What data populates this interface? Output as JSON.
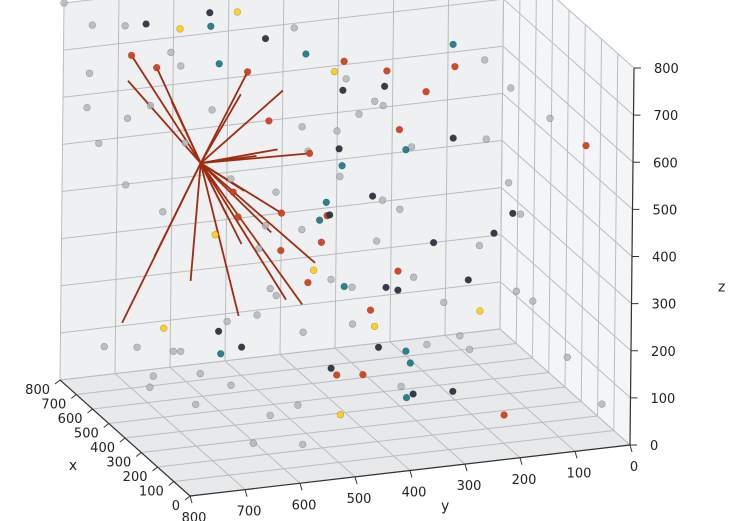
{
  "chart_data": {
    "type": "scatter",
    "projection": "3d",
    "grid": true,
    "title": "",
    "xlabel": "x",
    "ylabel": "y",
    "zlabel": "z",
    "xlim": [
      0,
      800
    ],
    "ylim": [
      0,
      800
    ],
    "zlim": [
      0,
      800
    ],
    "x_ticks": [
      "0",
      "100",
      "200",
      "300",
      "400",
      "500",
      "600",
      "700",
      "800"
    ],
    "y_ticks": [
      "0",
      "100",
      "200",
      "300",
      "400",
      "500",
      "600",
      "700",
      "800"
    ],
    "z_ticks": [
      "0",
      "100",
      "200",
      "300",
      "400",
      "500",
      "600",
      "700",
      "800"
    ],
    "colors": {
      "line": "#a02c10",
      "red": "#d2401c",
      "teal": "#1d7b88",
      "dark": "#2b3340",
      "gray": "#b2b6ba",
      "yellow": "#ffcc19"
    },
    "hub": [
      760,
      560,
      440
    ],
    "spokes_to": [
      [
        800,
        630,
        640
      ],
      [
        740,
        700,
        640
      ],
      [
        640,
        650,
        620
      ],
      [
        720,
        700,
        700
      ],
      [
        800,
        400,
        560
      ],
      [
        800,
        350,
        420
      ],
      [
        800,
        400,
        300
      ],
      [
        760,
        350,
        200
      ],
      [
        700,
        420,
        150
      ],
      [
        800,
        630,
        240
      ],
      [
        760,
        700,
        120
      ],
      [
        680,
        600,
        220
      ],
      [
        720,
        500,
        120
      ],
      [
        640,
        520,
        300
      ],
      [
        600,
        560,
        380
      ],
      [
        600,
        620,
        520
      ],
      [
        560,
        540,
        440
      ],
      [
        560,
        480,
        520
      ],
      [
        520,
        560,
        660
      ],
      [
        480,
        560,
        720
      ],
      [
        460,
        520,
        380
      ],
      [
        420,
        560,
        560
      ],
      [
        400,
        480,
        240
      ]
    ],
    "points_red": [
      [
        800,
        630,
        640
      ],
      [
        720,
        700,
        700
      ],
      [
        800,
        350,
        420
      ],
      [
        800,
        400,
        300
      ],
      [
        560,
        560,
        440
      ],
      [
        480,
        560,
        720
      ],
      [
        400,
        520,
        360
      ],
      [
        280,
        580,
        680
      ],
      [
        160,
        480,
        830
      ],
      [
        100,
        420,
        820
      ],
      [
        20,
        320,
        840
      ],
      [
        60,
        360,
        780
      ],
      [
        20,
        420,
        720
      ],
      [
        120,
        520,
        520
      ],
      [
        220,
        500,
        430
      ],
      [
        300,
        500,
        320
      ],
      [
        220,
        360,
        350
      ],
      [
        720,
        260,
        100
      ],
      [
        520,
        380,
        40
      ],
      [
        360,
        380,
        90
      ],
      [
        100,
        200,
        60
      ],
      [
        20,
        80,
        640
      ],
      [
        60,
        700,
        560
      ]
    ],
    "points_teal": [
      [
        640,
        580,
        770
      ],
      [
        520,
        600,
        730
      ],
      [
        260,
        520,
        820
      ],
      [
        100,
        300,
        860
      ],
      [
        180,
        360,
        620
      ],
      [
        260,
        480,
        500
      ],
      [
        300,
        440,
        560
      ],
      [
        500,
        420,
        380
      ],
      [
        480,
        380,
        240
      ],
      [
        340,
        300,
        110
      ],
      [
        760,
        520,
        30
      ],
      [
        160,
        360,
        100
      ],
      [
        100,
        380,
        220
      ]
    ],
    "points_dark": [
      [
        700,
        680,
        770
      ],
      [
        580,
        600,
        820
      ],
      [
        440,
        540,
        800
      ],
      [
        300,
        440,
        720
      ],
      [
        180,
        400,
        760
      ],
      [
        160,
        280,
        640
      ],
      [
        60,
        200,
        500
      ],
      [
        240,
        180,
        400
      ],
      [
        340,
        260,
        360
      ],
      [
        420,
        300,
        240
      ],
      [
        200,
        400,
        200
      ],
      [
        220,
        480,
        160
      ],
      [
        640,
        560,
        120
      ],
      [
        700,
        500,
        60
      ],
      [
        120,
        360,
        120
      ],
      [
        280,
        240,
        60
      ],
      [
        380,
        360,
        460
      ],
      [
        520,
        380,
        520
      ],
      [
        640,
        360,
        340
      ],
      [
        560,
        280,
        200
      ],
      [
        260,
        220,
        300
      ]
    ],
    "points_gray": [
      [
        800,
        800,
        800
      ],
      [
        760,
        760,
        760
      ],
      [
        740,
        700,
        560
      ],
      [
        620,
        640,
        700
      ],
      [
        560,
        600,
        620
      ],
      [
        680,
        720,
        440
      ],
      [
        720,
        640,
        360
      ],
      [
        600,
        500,
        300
      ],
      [
        540,
        520,
        180
      ],
      [
        460,
        460,
        160
      ],
      [
        360,
        400,
        200
      ],
      [
        360,
        440,
        300
      ],
      [
        340,
        500,
        420
      ],
      [
        300,
        560,
        520
      ],
      [
        240,
        520,
        620
      ],
      [
        200,
        440,
        700
      ],
      [
        120,
        420,
        740
      ],
      [
        80,
        500,
        820
      ],
      [
        40,
        260,
        840
      ],
      [
        80,
        200,
        760
      ],
      [
        40,
        140,
        700
      ],
      [
        20,
        220,
        580
      ],
      [
        60,
        260,
        440
      ],
      [
        100,
        180,
        320
      ],
      [
        40,
        300,
        260
      ],
      [
        60,
        400,
        160
      ],
      [
        140,
        300,
        300
      ],
      [
        180,
        240,
        180
      ],
      [
        240,
        300,
        180
      ],
      [
        280,
        340,
        460
      ],
      [
        400,
        420,
        600
      ],
      [
        440,
        340,
        640
      ],
      [
        480,
        260,
        520
      ],
      [
        520,
        300,
        400
      ],
      [
        580,
        360,
        440
      ],
      [
        620,
        280,
        280
      ],
      [
        660,
        200,
        180
      ],
      [
        700,
        300,
        160
      ],
      [
        760,
        420,
        140
      ],
      [
        780,
        600,
        40
      ],
      [
        800,
        720,
        60
      ],
      [
        700,
        660,
        20
      ],
      [
        600,
        720,
        120
      ],
      [
        520,
        720,
        60
      ],
      [
        440,
        660,
        40
      ],
      [
        360,
        620,
        100
      ],
      [
        280,
        700,
        160
      ],
      [
        200,
        760,
        240
      ],
      [
        120,
        700,
        320
      ],
      [
        60,
        640,
        400
      ],
      [
        160,
        620,
        500
      ],
      [
        240,
        660,
        580
      ],
      [
        320,
        720,
        640
      ],
      [
        400,
        760,
        700
      ],
      [
        480,
        700,
        780
      ],
      [
        560,
        760,
        820
      ],
      [
        640,
        800,
        700
      ],
      [
        720,
        780,
        600
      ],
      [
        780,
        740,
        500
      ],
      [
        680,
        400,
        520
      ],
      [
        600,
        440,
        760
      ],
      [
        360,
        160,
        560
      ],
      [
        280,
        120,
        420
      ],
      [
        200,
        120,
        260
      ],
      [
        120,
        80,
        160
      ],
      [
        40,
        40,
        80
      ],
      [
        120,
        560,
        40
      ],
      [
        220,
        620,
        20
      ],
      [
        320,
        560,
        40
      ],
      [
        420,
        480,
        20
      ]
    ],
    "points_yellow": [
      [
        720,
        400,
        870
      ],
      [
        680,
        520,
        780
      ],
      [
        560,
        660,
        800
      ],
      [
        420,
        420,
        720
      ],
      [
        600,
        580,
        340
      ],
      [
        400,
        460,
        310
      ],
      [
        560,
        300,
        120
      ],
      [
        640,
        660,
        140
      ],
      [
        120,
        240,
        280
      ],
      [
        160,
        480,
        80
      ]
    ]
  }
}
